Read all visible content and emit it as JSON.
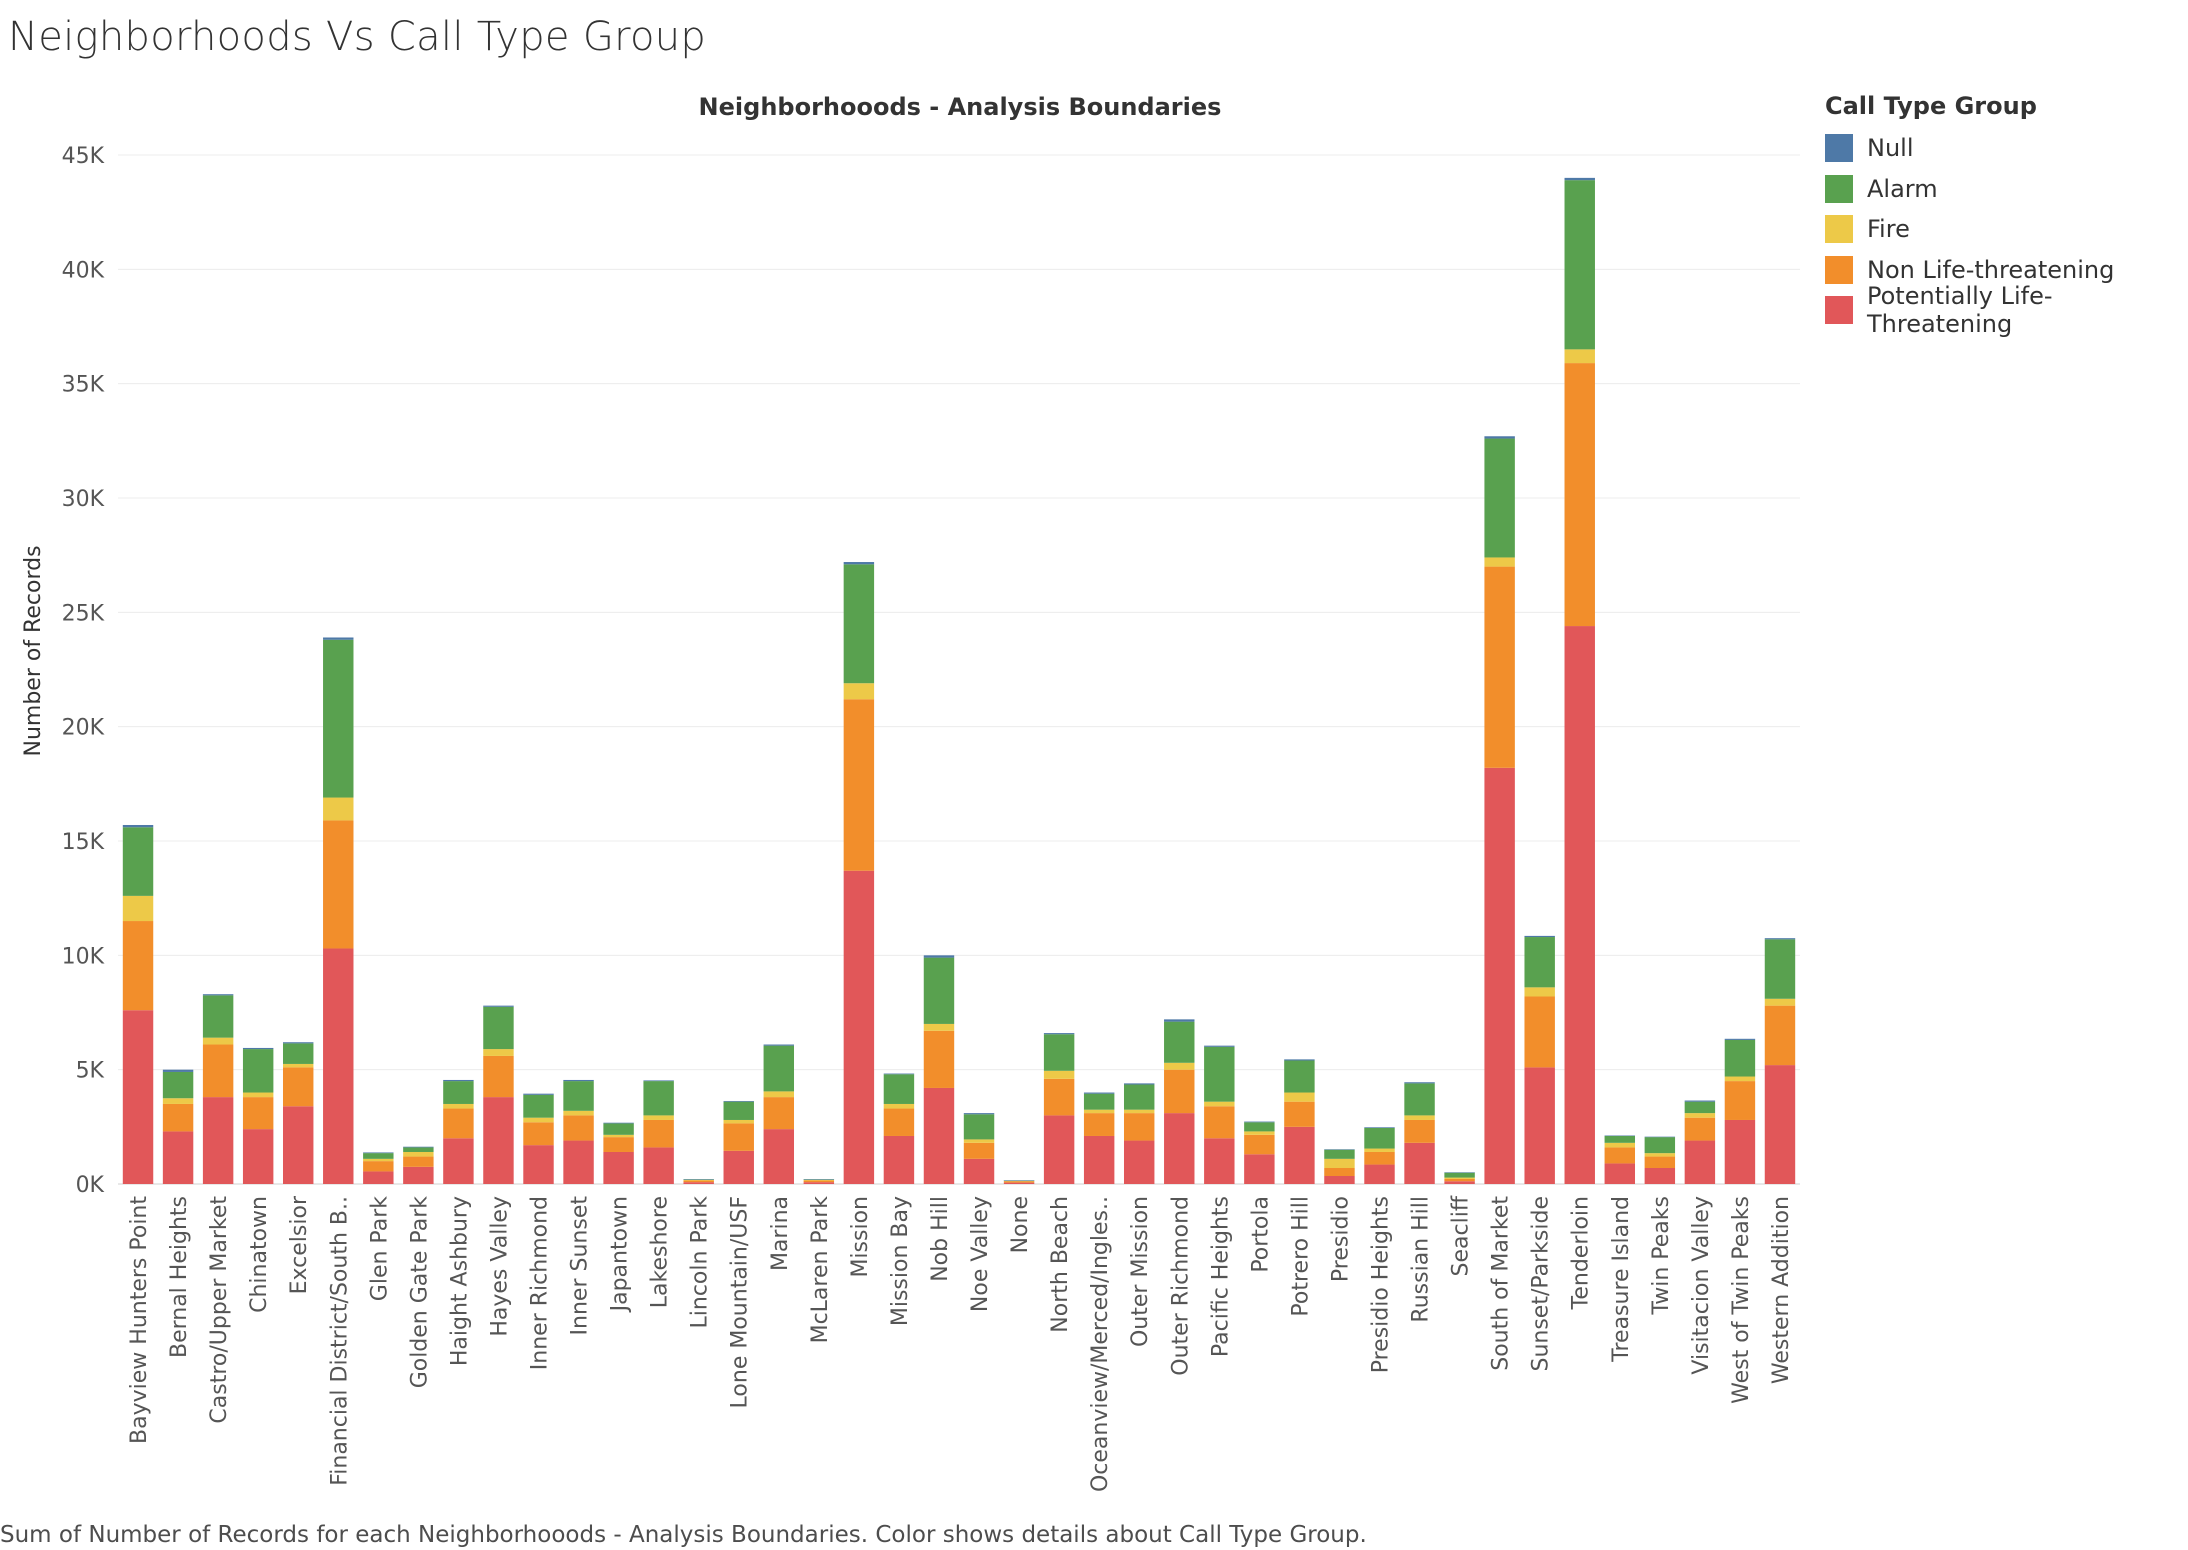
{
  "page": {
    "title": "Neighborhoods Vs Call Type Group",
    "caption": "Sum of Number of Records for each Neighborhooods - Analysis Boundaries.  Color shows details about Call Type Group."
  },
  "legend": {
    "title": "Call Type Group",
    "items": [
      {
        "label": "Null",
        "color": "#4e79a7"
      },
      {
        "label": "Alarm",
        "color": "#59a14f"
      },
      {
        "label": "Fire",
        "color": "#edc948"
      },
      {
        "label": "Non Life-threatening",
        "color": "#f28e2b"
      },
      {
        "label": "Potentially Life-Threatening",
        "color": "#e15759"
      }
    ]
  },
  "chart_data": {
    "type": "bar",
    "stacked": true,
    "title": "Neighborhooods - Analysis Boundaries",
    "xlabel": "",
    "ylabel": "Number of Records",
    "ylim": [
      0,
      45000
    ],
    "yticks": [
      0,
      5000,
      10000,
      15000,
      20000,
      25000,
      30000,
      35000,
      40000,
      45000
    ],
    "ytick_labels": [
      "0K",
      "5K",
      "10K",
      "15K",
      "20K",
      "25K",
      "30K",
      "35K",
      "40K",
      "45K"
    ],
    "grid": true,
    "legend_position": "right",
    "categories": [
      "Bayview Hunters Point",
      "Bernal Heights",
      "Castro/Upper Market",
      "Chinatown",
      "Excelsior",
      "Financial District/South B..",
      "Glen Park",
      "Golden Gate Park",
      "Haight Ashbury",
      "Hayes Valley",
      "Inner Richmond",
      "Inner Sunset",
      "Japantown",
      "Lakeshore",
      "Lincoln Park",
      "Lone Mountain/USF",
      "Marina",
      "McLaren Park",
      "Mission",
      "Mission Bay",
      "Nob Hill",
      "Noe Valley",
      "None",
      "North Beach",
      "Oceanview/Merced/Ingles..",
      "Outer Mission",
      "Outer Richmond",
      "Pacific Heights",
      "Portola",
      "Potrero Hill",
      "Presidio",
      "Presidio Heights",
      "Russian Hill",
      "Seacliff",
      "South of Market",
      "Sunset/Parkside",
      "Tenderloin",
      "Treasure Island",
      "Twin Peaks",
      "Visitacion Valley",
      "West of Twin Peaks",
      "Western Addition"
    ],
    "series": [
      {
        "name": "Potentially Life-Threatening",
        "color": "#e15759",
        "values": [
          7600,
          2300,
          3800,
          2400,
          3400,
          10300,
          550,
          750,
          2000,
          3800,
          1700,
          1900,
          1400,
          1600,
          80,
          1450,
          2400,
          80,
          13700,
          2100,
          4200,
          1100,
          60,
          3000,
          2100,
          1900,
          3100,
          2000,
          1300,
          2500,
          350,
          850,
          1800,
          120,
          18200,
          5100,
          24400,
          900,
          700,
          1900,
          2800,
          5200
        ]
      },
      {
        "name": "Non Life-threatening",
        "color": "#f28e2b",
        "values": [
          3900,
          1200,
          2300,
          1400,
          1700,
          5600,
          450,
          450,
          1300,
          1800,
          1000,
          1100,
          650,
          1200,
          70,
          1200,
          1400,
          70,
          7500,
          1200,
          2500,
          700,
          60,
          1600,
          1000,
          1200,
          1900,
          1400,
          850,
          1100,
          350,
          550,
          1000,
          100,
          8800,
          3100,
          11500,
          700,
          500,
          1000,
          1700,
          2600
        ]
      },
      {
        "name": "Fire",
        "color": "#edc948",
        "values": [
          1100,
          250,
          300,
          200,
          150,
          1000,
          100,
          200,
          200,
          300,
          200,
          200,
          100,
          200,
          30,
          150,
          250,
          30,
          700,
          200,
          300,
          150,
          20,
          350,
          150,
          150,
          300,
          200,
          150,
          400,
          400,
          150,
          200,
          60,
          400,
          400,
          600,
          200,
          150,
          200,
          200,
          300
        ]
      },
      {
        "name": "Alarm",
        "color": "#59a14f",
        "values": [
          3000,
          1150,
          1850,
          1900,
          900,
          6900,
          250,
          200,
          1000,
          1850,
          1000,
          1300,
          500,
          1500,
          20,
          800,
          2000,
          20,
          5200,
          1300,
          2900,
          1100,
          10,
          1600,
          700,
          1100,
          1800,
          2400,
          400,
          1400,
          400,
          900,
          1400,
          220,
          5200,
          2200,
          7400,
          300,
          700,
          500,
          1600,
          2600
        ]
      },
      {
        "name": "Null",
        "color": "#4e79a7",
        "values": [
          100,
          100,
          50,
          50,
          50,
          100,
          30,
          30,
          50,
          50,
          50,
          50,
          30,
          30,
          10,
          30,
          50,
          10,
          100,
          30,
          100,
          50,
          10,
          50,
          50,
          50,
          100,
          50,
          30,
          50,
          20,
          30,
          50,
          10,
          100,
          50,
          100,
          20,
          20,
          50,
          50,
          50
        ]
      }
    ]
  }
}
